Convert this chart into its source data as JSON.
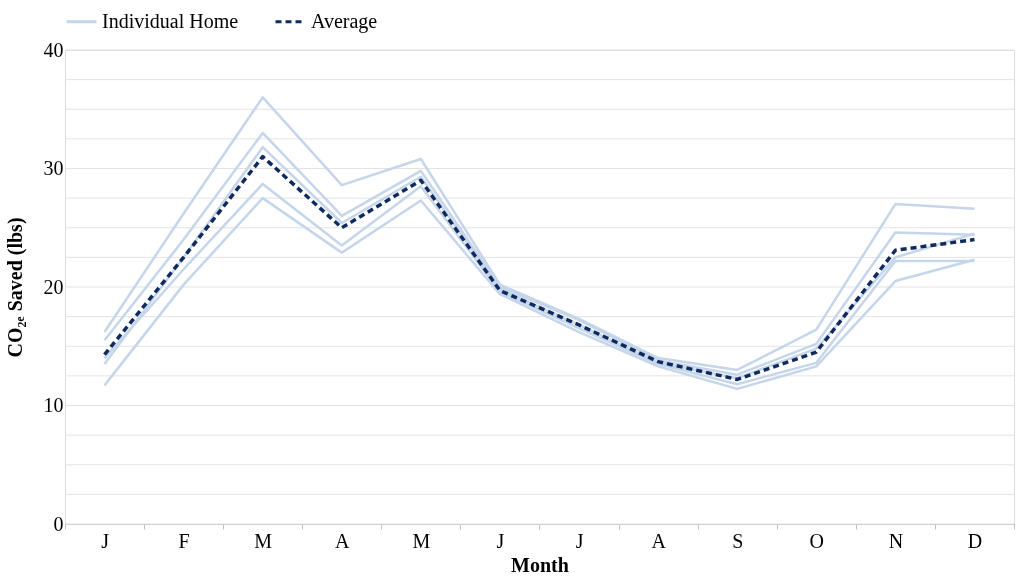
{
  "chart_data": {
    "type": "line",
    "xlabel": "Month",
    "ylabel": "CO₂ₑ Saved (lbs)",
    "categories": [
      "J",
      "F",
      "M",
      "A",
      "M",
      "J",
      "J",
      "A",
      "S",
      "O",
      "N",
      "D"
    ],
    "series": [
      {
        "name": "Individual Home",
        "color": "#c5d5ea",
        "line_style": "solid",
        "values": [
          16.2,
          26.2,
          36,
          28.6,
          30.8,
          20.2,
          17.3,
          14.0,
          13.0,
          16.4,
          27.0,
          26.6
        ]
      },
      {
        "color": "#c5d5ea",
        "line_style": "solid",
        "values": [
          15.5,
          24,
          33,
          26,
          29.8,
          20,
          17.2,
          13.8,
          12.6,
          15.2,
          24.6,
          24.4
        ]
      },
      {
        "color": "#c5d5ea",
        "line_style": "solid",
        "values": [
          13.5,
          22.5,
          31.8,
          25.4,
          29.3,
          19.8,
          16.8,
          13.6,
          12.3,
          14.8,
          22.5,
          24.5
        ]
      },
      {
        "color": "#c5d5ea",
        "line_style": "solid",
        "values": [
          14,
          21.5,
          28.7,
          23.5,
          28.5,
          19.6,
          16.5,
          13.5,
          11.8,
          13.6,
          22.2,
          22.2
        ]
      },
      {
        "color": "#c5d5ea",
        "line_style": "solid",
        "values": [
          11.7,
          20.2,
          27.5,
          22.9,
          27.3,
          19.4,
          16.2,
          13.3,
          11.4,
          13.3,
          20.5,
          22.3
        ]
      },
      {
        "name": "Average",
        "color": "#0f2a5f",
        "line_style": "dashed",
        "values": [
          14.3,
          22.5,
          31,
          25,
          29,
          19.7,
          16.8,
          13.7,
          12.2,
          14.5,
          23.1,
          24
        ]
      }
    ],
    "ylim": [
      0,
      40
    ],
    "yticks": [
      0,
      {
        "value": 2.5,
        "label": null
      },
      {
        "value": 5,
        "label": null
      },
      {
        "value": 7.5,
        "label": null
      },
      10,
      {
        "value": 12.5,
        "label": null
      },
      {
        "value": 15,
        "label": null
      },
      {
        "value": 17.5,
        "label": null
      },
      20,
      {
        "value": 22.5,
        "label": null
      },
      {
        "value": 25,
        "label": null
      },
      {
        "value": 27.5,
        "label": null
      },
      30,
      {
        "value": 32.5,
        "label": null
      },
      {
        "value": 35,
        "label": null
      },
      {
        "value": 37.5,
        "label": null
      },
      40
    ],
    "grid": "y",
    "legend": "top",
    "marker": "none"
  }
}
